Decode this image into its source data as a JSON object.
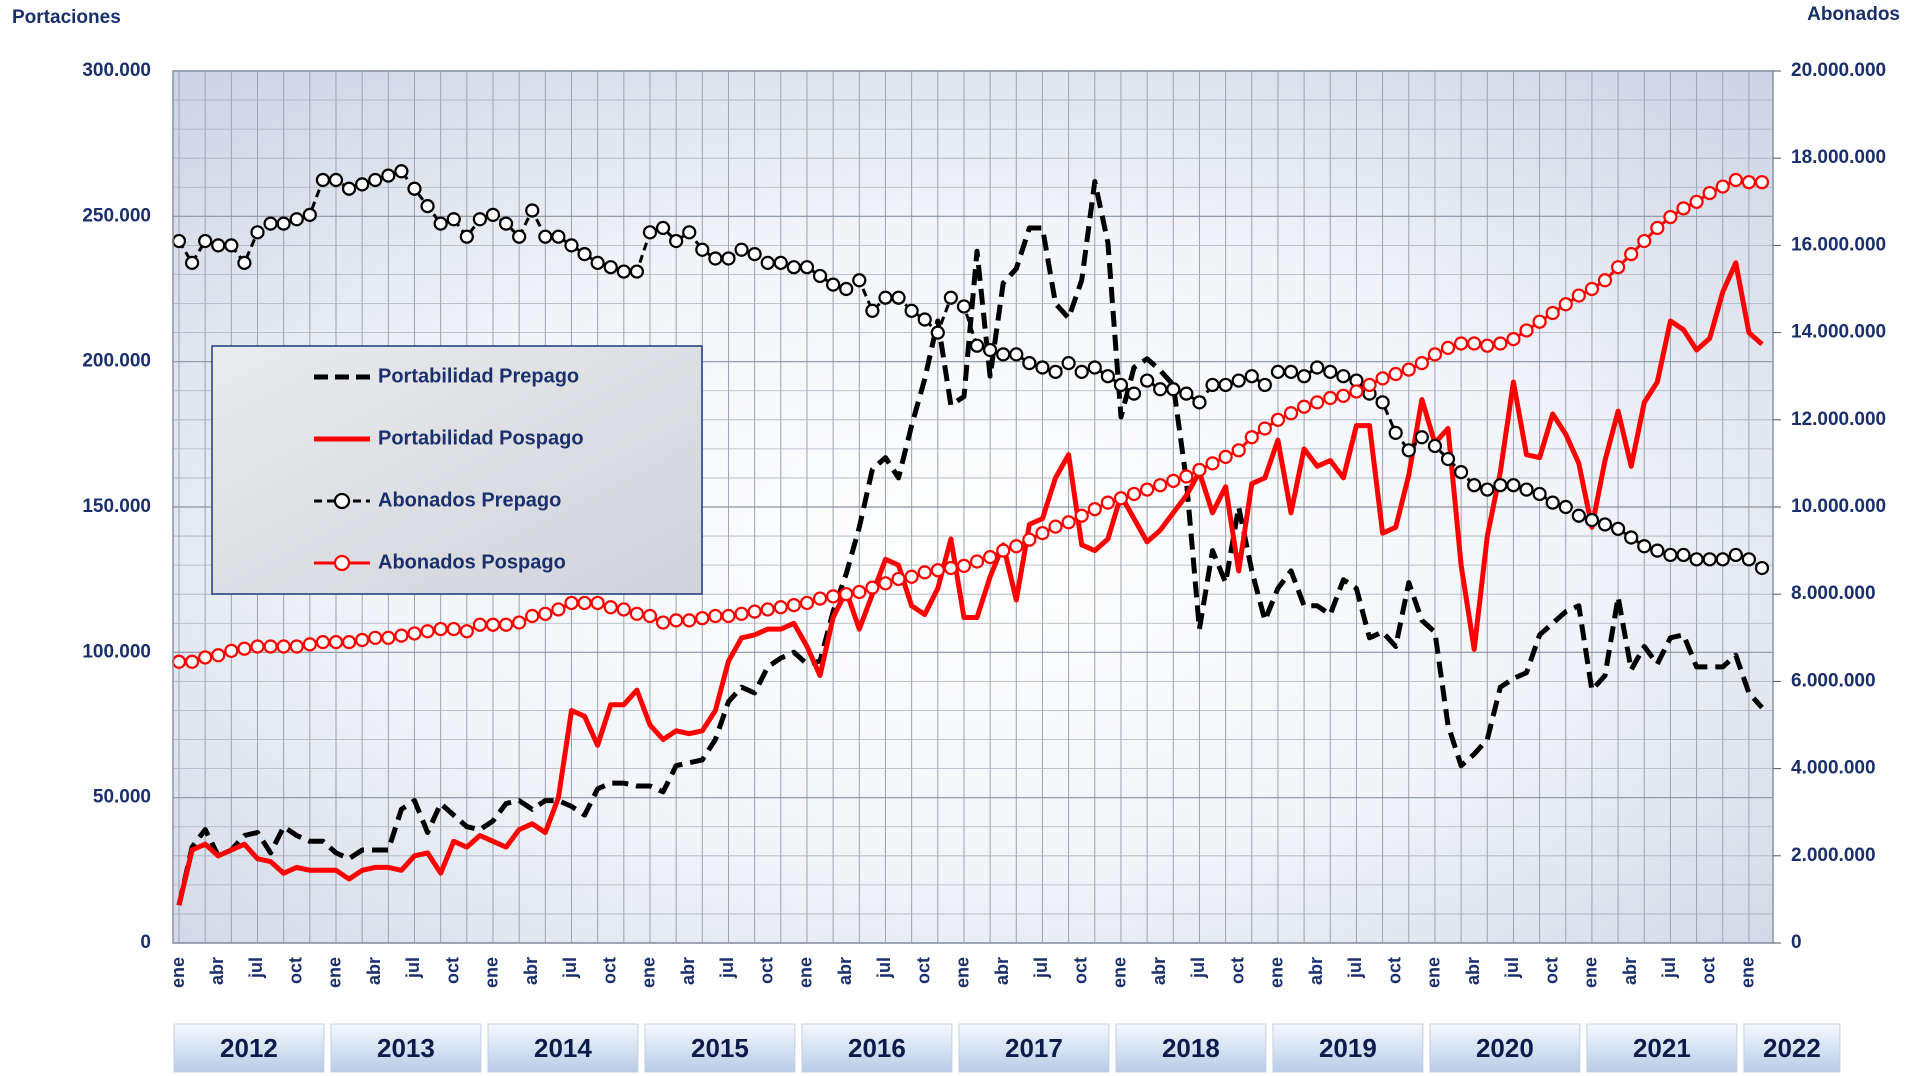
{
  "chart_data": {
    "type": "line",
    "y_axis_label": "Portaciones",
    "y2_axis_label": "Abonados",
    "categories": [
      "ene",
      null,
      null,
      "abr",
      null,
      null,
      "jul",
      null,
      null,
      "oct",
      null,
      null,
      "ene",
      null,
      null,
      "abr",
      null,
      null,
      "jul",
      null,
      null,
      "oct",
      null,
      null,
      "ene",
      null,
      null,
      "abr",
      null,
      null,
      "jul",
      null,
      null,
      "oct",
      null,
      null,
      "ene",
      null,
      null,
      "abr",
      null,
      null,
      "jul",
      null,
      null,
      "oct",
      null,
      null,
      "ene",
      null,
      null,
      "abr",
      null,
      null,
      "jul",
      null,
      null,
      "oct",
      null,
      null,
      "ene",
      null,
      null,
      "abr",
      null,
      null,
      "jul",
      null,
      null,
      "oct",
      null,
      null,
      "ene",
      null,
      null,
      "abr",
      null,
      null,
      "jul",
      null,
      null,
      "oct",
      null,
      null,
      "ene",
      null,
      null,
      "abr",
      null,
      null,
      "jul",
      null,
      null,
      "oct",
      null,
      null,
      "ene",
      null,
      null,
      "abr",
      null,
      null,
      "jul",
      null,
      null,
      "oct",
      null,
      null,
      "ene",
      null,
      null,
      "abr",
      null,
      null,
      "jul",
      null,
      null,
      "oct",
      null,
      null,
      "ene",
      null
    ],
    "year_labels": [
      "2012",
      "2013",
      "2014",
      "2015",
      "2016",
      "2017",
      "2018",
      "2019",
      "2020",
      "2021",
      "2022"
    ],
    "ylim": [
      0,
      300000
    ],
    "yticks": [
      0,
      {
        "value": 50000,
        "label": "50.000"
      },
      {
        "value": 100000,
        "label": "100.000"
      },
      {
        "value": 150000,
        "label": "150.000"
      },
      {
        "value": 200000,
        "label": "200.000"
      },
      {
        "value": 250000,
        "label": "250.000"
      },
      {
        "value": 300000,
        "label": "300.000"
      }
    ],
    "y2lim": [
      0,
      20000000
    ],
    "y2ticks": [
      0,
      {
        "value": 2000000,
        "label": "2.000.000"
      },
      {
        "value": 4000000,
        "label": "4.000.000"
      },
      {
        "value": 6000000,
        "label": "6.000.000"
      },
      {
        "value": 8000000,
        "label": "8.000.000"
      },
      {
        "value": 10000000,
        "label": "10.000.000"
      },
      {
        "value": 12000000,
        "label": "12.000.000"
      },
      {
        "value": 14000000,
        "label": "14.000.000"
      },
      {
        "value": 16000000,
        "label": "16.000.000"
      },
      {
        "value": 18000000,
        "label": "18.000.000"
      },
      {
        "value": 20000000,
        "label": "20.000.000"
      }
    ],
    "grid": true,
    "series": [
      {
        "name": "Portabilidad Prepago",
        "color": "#000000",
        "line_style": "dashed",
        "values": [
          13000,
          33000,
          39000,
          30000,
          32000,
          37000,
          38000,
          31000,
          40000,
          37000,
          35000,
          35000,
          31000,
          29000,
          32000,
          32000,
          32000,
          46000,
          49000,
          38000,
          48000,
          44000,
          40000,
          39000,
          42000,
          48000,
          49000,
          46000,
          49000,
          49000,
          47000,
          44000,
          53000,
          55000,
          55000,
          54000,
          54000,
          52000,
          61000,
          62000,
          63000,
          70000,
          83000,
          88000,
          86000,
          95000,
          98000,
          100000,
          96000,
          97000,
          114000,
          127000,
          143000,
          163000,
          167000,
          160000,
          178000,
          194000,
          214000,
          185000,
          188000,
          238000,
          195000,
          227000,
          232000,
          246000,
          246000,
          220000,
          215000,
          228000,
          262000,
          241000,
          181000,
          198000,
          201000,
          197000,
          192000,
          159000,
          108000,
          135000,
          124000,
          150000,
          128000,
          111000,
          122000,
          128000,
          116000,
          116000,
          113000,
          125000,
          122000,
          105000,
          107000,
          102000,
          124000,
          111000,
          107000,
          75000,
          61000,
          65000,
          70000,
          88000,
          91000,
          93000,
          106000,
          110000,
          114000,
          116000,
          87000,
          92000,
          119000,
          94000,
          102000,
          96000,
          105000,
          106000,
          95000,
          95000,
          95000,
          99000,
          86000,
          81000
        ]
      },
      {
        "name": "Portabilidad Pospago",
        "color": "#ff0000",
        "line_style": "solid",
        "values": [
          13000,
          32000,
          34000,
          30000,
          32000,
          34000,
          29000,
          28000,
          24000,
          26000,
          25000,
          25000,
          25000,
          22000,
          25000,
          26000,
          26000,
          25000,
          30000,
          31000,
          24000,
          35000,
          33000,
          37000,
          35000,
          33000,
          39000,
          41000,
          38000,
          50000,
          80000,
          78000,
          68000,
          82000,
          82000,
          87000,
          75000,
          70000,
          73000,
          72000,
          73000,
          80000,
          97000,
          105000,
          106000,
          108000,
          108000,
          110000,
          102000,
          92000,
          112000,
          121000,
          108000,
          120000,
          132000,
          130000,
          116000,
          113000,
          122000,
          139000,
          112000,
          112000,
          126000,
          137000,
          118000,
          144000,
          146000,
          160000,
          168000,
          137000,
          135000,
          139000,
          154000,
          146000,
          138000,
          142000,
          148000,
          154000,
          162000,
          148000,
          157000,
          128000,
          158000,
          160000,
          173000,
          148000,
          170000,
          164000,
          166000,
          160000,
          178000,
          178000,
          141000,
          143000,
          161000,
          187000,
          172000,
          177000,
          130000,
          101000,
          140000,
          162000,
          193000,
          168000,
          167000,
          182000,
          175000,
          165000,
          143000,
          166000,
          183000,
          164000,
          186000,
          193000,
          214000,
          211000,
          204000,
          208000,
          224000,
          234000,
          210000,
          206000
        ]
      },
      {
        "name": "Abonados Prepago",
        "color": "#000000",
        "line_style": "dashed",
        "marker": "circle",
        "axis": "y2",
        "values": [
          16100000,
          15600000,
          16100000,
          16000000,
          16000000,
          15600000,
          16300000,
          16500000,
          16500000,
          16600000,
          16700000,
          17500000,
          17500000,
          17300000,
          17400000,
          17500000,
          17600000,
          17700000,
          17300000,
          16900000,
          16500000,
          16600000,
          16200000,
          16600000,
          16700000,
          16500000,
          16200000,
          16800000,
          16200000,
          16200000,
          16000000,
          15800000,
          15600000,
          15500000,
          15400000,
          15400000,
          16300000,
          16400000,
          16100000,
          16300000,
          15900000,
          15700000,
          15700000,
          15900000,
          15800000,
          15600000,
          15600000,
          15500000,
          15500000,
          15300000,
          15100000,
          15000000,
          15200000,
          14500000,
          14800000,
          14800000,
          14500000,
          14300000,
          14000000,
          14800000,
          14600000,
          13700000,
          13600000,
          13500000,
          13500000,
          13300000,
          13200000,
          13100000,
          13300000,
          13100000,
          13200000,
          13000000,
          12800000,
          12600000,
          12900000,
          12700000,
          12700000,
          12600000,
          12400000,
          12800000,
          12800000,
          12900000,
          13000000,
          12800000,
          13100000,
          13100000,
          13000000,
          13200000,
          13100000,
          13000000,
          12900000,
          12600000,
          12400000,
          11700000,
          11300000,
          11600000,
          11400000,
          11100000,
          10800000,
          10500000,
          10400000,
          10500000,
          10500000,
          10400000,
          10300000,
          10100000,
          10000000,
          9800000,
          9700000,
          9600000,
          9500000,
          9300000,
          9100000,
          9000000,
          8900000,
          8900000,
          8800000,
          8800000,
          8800000,
          8900000,
          8800000,
          8600000
        ]
      },
      {
        "name": "Abonados Pospago",
        "color": "#ff0000",
        "line_style": "solid",
        "marker": "circle",
        "axis": "y2",
        "values": [
          6450000,
          6450000,
          6550000,
          6600000,
          6700000,
          6750000,
          6800000,
          6800000,
          6800000,
          6800000,
          6850000,
          6900000,
          6900000,
          6900000,
          6950000,
          7000000,
          7000000,
          7050000,
          7100000,
          7150000,
          7200000,
          7200000,
          7150000,
          7300000,
          7300000,
          7300000,
          7350000,
          7500000,
          7550000,
          7650000,
          7800000,
          7800000,
          7800000,
          7700000,
          7650000,
          7550000,
          7500000,
          7350000,
          7400000,
          7400000,
          7450000,
          7500000,
          7500000,
          7550000,
          7600000,
          7650000,
          7700000,
          7750000,
          7800000,
          7900000,
          7950000,
          8000000,
          8050000,
          8150000,
          8250000,
          8350000,
          8400000,
          8500000,
          8550000,
          8600000,
          8650000,
          8750000,
          8850000,
          9000000,
          9100000,
          9250000,
          9400000,
          9550000,
          9650000,
          9800000,
          9950000,
          10100000,
          10200000,
          10300000,
          10400000,
          10500000,
          10600000,
          10700000,
          10850000,
          11000000,
          11150000,
          11300000,
          11600000,
          11800000,
          12000000,
          12150000,
          12300000,
          12400000,
          12500000,
          12550000,
          12650000,
          12800000,
          12950000,
          13050000,
          13150000,
          13300000,
          13500000,
          13650000,
          13750000,
          13750000,
          13700000,
          13750000,
          13850000,
          14050000,
          14250000,
          14450000,
          14650000,
          14850000,
          15000000,
          15200000,
          15500000,
          15800000,
          16100000,
          16400000,
          16650000,
          16850000,
          17000000,
          17200000,
          17350000,
          17500000,
          17450000,
          17450000
        ]
      }
    ]
  }
}
